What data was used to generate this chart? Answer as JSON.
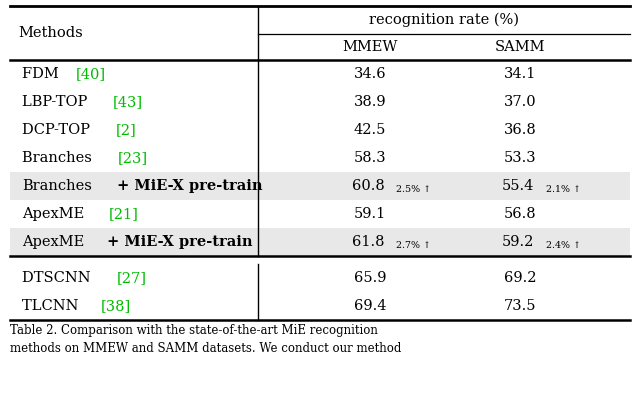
{
  "header_top": "recognition rate (%)",
  "col_headers": [
    "Methods",
    "MMEW",
    "SAMM"
  ],
  "rows_group1": [
    {
      "method_plain": "FDM ",
      "method_cite": "[40]",
      "mmew": "34.6",
      "samm": "34.1",
      "highlight": false,
      "bold_plus": false
    },
    {
      "method_plain": "LBP-TOP ",
      "method_cite": "[43]",
      "mmew": "38.9",
      "samm": "37.0",
      "highlight": false,
      "bold_plus": false
    },
    {
      "method_plain": "DCP-TOP ",
      "method_cite": "[2]",
      "mmew": "42.5",
      "samm": "36.8",
      "highlight": false,
      "bold_plus": false
    },
    {
      "method_plain": "Branches ",
      "method_cite": "[23]",
      "mmew": "58.3",
      "samm": "53.3",
      "highlight": false,
      "bold_plus": false
    },
    {
      "method_plain": "Branches",
      "method_bold": " + MiE-X pre-train",
      "method_cite": "",
      "mmew": "60.8",
      "samm": "55.4",
      "highlight": true,
      "bold_plus": true,
      "mmew_sub": "2.5% ↑",
      "samm_sub": "2.1% ↑"
    },
    {
      "method_plain": "ApexME ",
      "method_cite": "[21]",
      "mmew": "59.1",
      "samm": "56.8",
      "highlight": false,
      "bold_plus": false
    },
    {
      "method_plain": "ApexME",
      "method_bold": " + MiE-X pre-train",
      "method_cite": "",
      "mmew": "61.8",
      "samm": "59.2",
      "highlight": true,
      "bold_plus": true,
      "mmew_sub": "2.7% ↑",
      "samm_sub": "2.4% ↑"
    }
  ],
  "rows_group2": [
    {
      "method_plain": "DTSCNN ",
      "method_cite": "[27]",
      "mmew": "65.9",
      "samm": "69.2",
      "highlight": false,
      "bold_plus": false
    },
    {
      "method_plain": "TLCNN ",
      "method_cite": "[38]",
      "mmew": "69.4",
      "samm": "73.5",
      "highlight": false,
      "bold_plus": false
    }
  ],
  "caption": "Table 2. Comparison with the state-of-the-art MiE recognition\nmethods on MMEW and SAMM datasets. We conduct our method",
  "bg_color": "#ffffff",
  "highlight_color": "#e8e8e8",
  "green_color": "#00bb00",
  "font_size": 10.5,
  "sub_font_size": 6.8,
  "caption_font_size": 8.5
}
